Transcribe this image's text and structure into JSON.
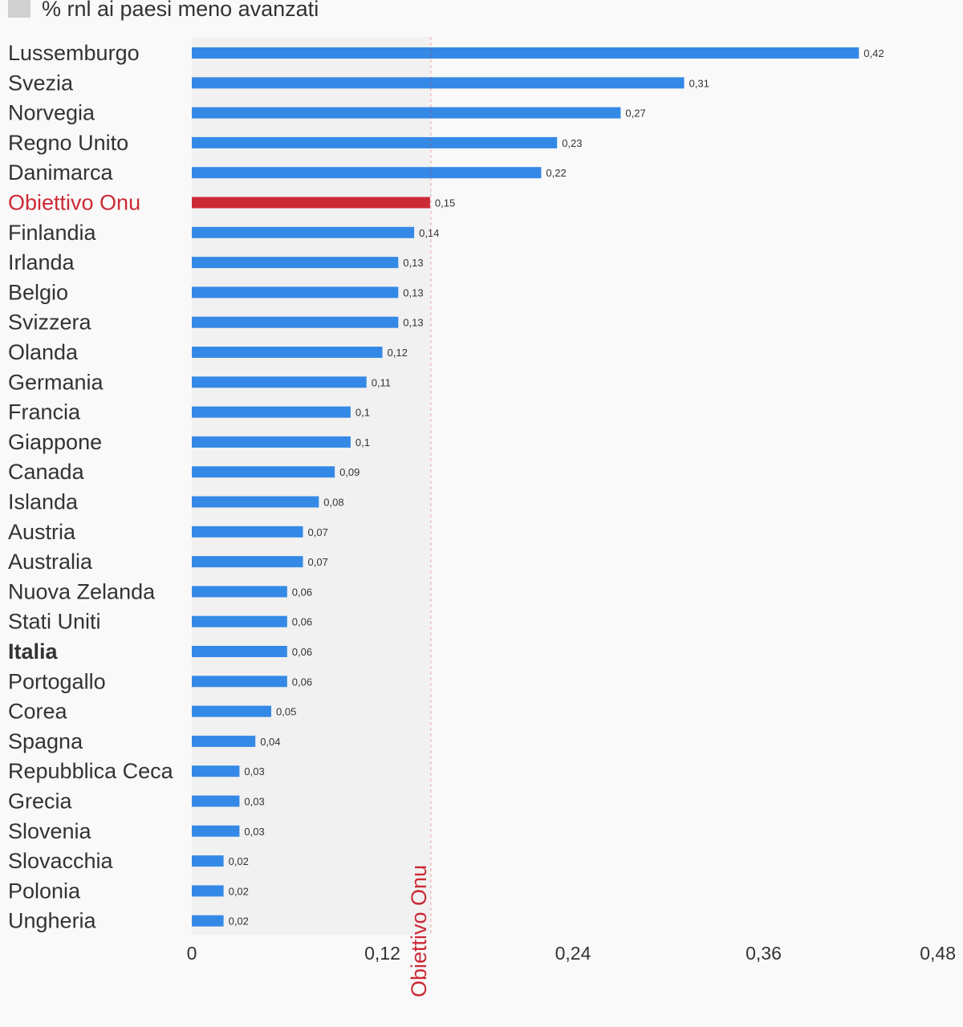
{
  "chart_data": {
    "type": "bar",
    "orientation": "horizontal",
    "legend": {
      "label": "% rnl ai paesi meno avanzati",
      "color": "#d0d0d0",
      "position": "top-left"
    },
    "categories": [
      "Lussemburgo",
      "Svezia",
      "Norvegia",
      "Regno Unito",
      "Danimarca",
      "Obiettivo Onu",
      "Finlandia",
      "Irlanda",
      "Belgio",
      "Svizzera",
      "Olanda",
      "Germania",
      "Francia",
      "Giappone",
      "Canada",
      "Islanda",
      "Austria",
      "Australia",
      "Nuova Zelanda",
      "Stati Uniti",
      "Italia",
      "Portogallo",
      "Corea",
      "Spagna",
      "Repubblica Ceca",
      "Grecia",
      "Slovenia",
      "Slovacchia",
      "Polonia",
      "Ungheria"
    ],
    "values": [
      0.42,
      0.31,
      0.27,
      0.23,
      0.22,
      0.15,
      0.14,
      0.13,
      0.13,
      0.13,
      0.12,
      0.11,
      0.1,
      0.1,
      0.09,
      0.08,
      0.07,
      0.07,
      0.06,
      0.06,
      0.06,
      0.06,
      0.05,
      0.04,
      0.03,
      0.03,
      0.03,
      0.02,
      0.02,
      0.02
    ],
    "value_labels": [
      "0,42",
      "0,31",
      "0,27",
      "0,23",
      "0,22",
      "0,15",
      "0,14",
      "0,13",
      "0,13",
      "0,13",
      "0,12",
      "0,11",
      "0,1",
      "0,1",
      "0,09",
      "0,08",
      "0,07",
      "0,07",
      "0,06",
      "0,06",
      "0,06",
      "0,06",
      "0,05",
      "0,04",
      "0,03",
      "0,03",
      "0,03",
      "0,02",
      "0,02",
      "0,02"
    ],
    "highlight_category": "Obiettivo Onu",
    "bold_category": "Italia",
    "xlim": [
      0,
      0.48
    ],
    "xticks": [
      0,
      0.12,
      0.24,
      0.36,
      0.48
    ],
    "xtick_labels": [
      "0",
      "0,12",
      "0,24",
      "0,36",
      "0,48"
    ],
    "reference_line": {
      "value": 0.15,
      "label": "Obiettivo Onu",
      "shaded_region": [
        0,
        0.15
      ]
    },
    "colors": {
      "bar": "#3589e6",
      "highlight_bar": "#cc2a36",
      "reference": "#cc2a36",
      "shade": "#f1f1f1"
    },
    "grid": false
  }
}
